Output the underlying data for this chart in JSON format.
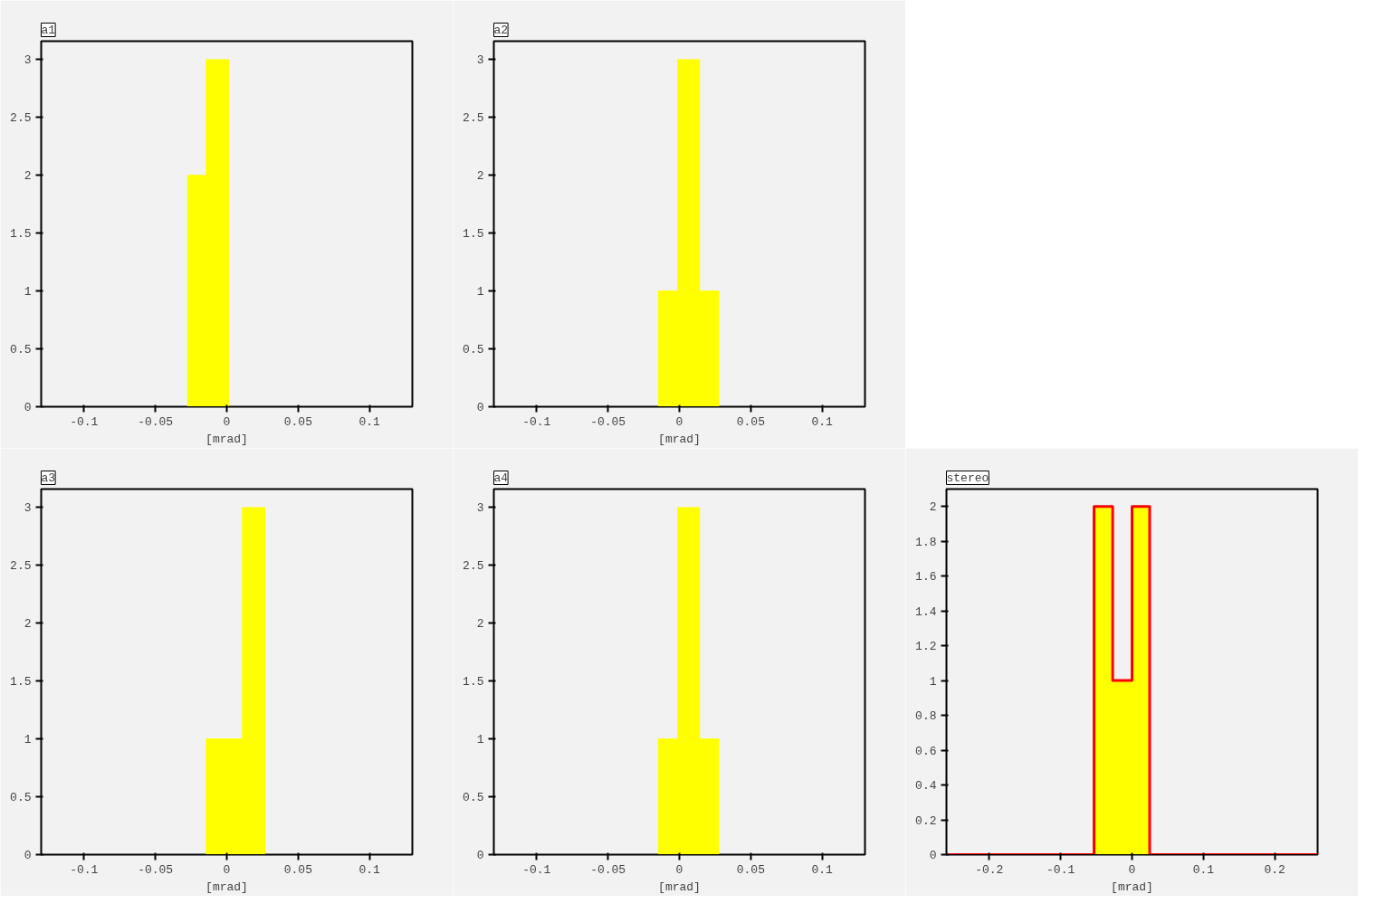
{
  "chart_data": [
    {
      "type": "histogram",
      "title": "a1",
      "xlabel": "[mrad]",
      "bins": [
        -0.0274,
        -0.0144,
        0.0012
      ],
      "values": [
        2,
        3
      ],
      "color": "#ffff00",
      "xlim": [
        -0.13,
        0.13
      ],
      "ylim": [
        0,
        3.16
      ],
      "xticks": [
        -0.1,
        -0.05,
        0,
        0.05,
        0.1
      ],
      "yticks": [
        0,
        0.5,
        1,
        1.5,
        2,
        2.5,
        3
      ]
    },
    {
      "type": "histogram",
      "title": "a2",
      "xlabel": "[mrad]",
      "bins": [
        -0.0147,
        -0.0012,
        0.0141,
        0.0276
      ],
      "values": [
        1,
        3,
        1
      ],
      "color": "#ffff00",
      "xlim": [
        -0.13,
        0.13
      ],
      "ylim": [
        0,
        3.16
      ],
      "xticks": [
        -0.1,
        -0.05,
        0,
        0.05,
        0.1
      ],
      "yticks": [
        0,
        0.5,
        1,
        1.5,
        2,
        2.5,
        3
      ]
    },
    {
      "type": "histogram",
      "title": "a3",
      "xlabel": "[mrad]",
      "bins": [
        -0.0144,
        0.011,
        0.0267
      ],
      "values": [
        1,
        3
      ],
      "color": "#ffff00",
      "xlim": [
        -0.13,
        0.13
      ],
      "ylim": [
        0,
        3.16
      ],
      "xticks": [
        -0.1,
        -0.05,
        0,
        0.05,
        0.1
      ],
      "yticks": [
        0,
        0.5,
        1,
        1.5,
        2,
        2.5,
        3
      ]
    },
    {
      "type": "histogram",
      "title": "a4",
      "xlabel": "[mrad]",
      "bins": [
        -0.0147,
        -0.0012,
        0.0141,
        0.0276
      ],
      "values": [
        1,
        3,
        1
      ],
      "color": "#ffff00",
      "xlim": [
        -0.13,
        0.13
      ],
      "ylim": [
        0,
        3.16
      ],
      "xticks": [
        -0.1,
        -0.05,
        0,
        0.05,
        0.1
      ],
      "yticks": [
        0,
        0.5,
        1,
        1.5,
        2,
        2.5,
        3
      ]
    },
    {
      "type": "histogram",
      "title": "stereo",
      "xlabel": "[mrad]",
      "bins": [
        -0.0532,
        -0.0271,
        0,
        0.0247
      ],
      "series": [
        {
          "type": "histogram",
          "color": "#ffff00",
          "values": [
            2,
            1,
            2
          ]
        },
        {
          "type": "step",
          "color": "#ff0000",
          "x": [
            -0.26,
            -0.0532,
            -0.0271,
            0,
            0.0247,
            0.26
          ],
          "values": [
            0,
            2,
            1,
            2,
            0,
            0
          ]
        }
      ],
      "xlim": [
        -0.26,
        0.26
      ],
      "ylim": [
        0,
        2.1
      ],
      "xticks": [
        -0.2,
        -0.1,
        0,
        0.1,
        0.2
      ],
      "yticks": [
        0,
        0.2,
        0.4,
        0.6,
        0.8,
        1,
        1.2,
        1.4,
        1.6,
        1.8,
        2
      ]
    }
  ]
}
